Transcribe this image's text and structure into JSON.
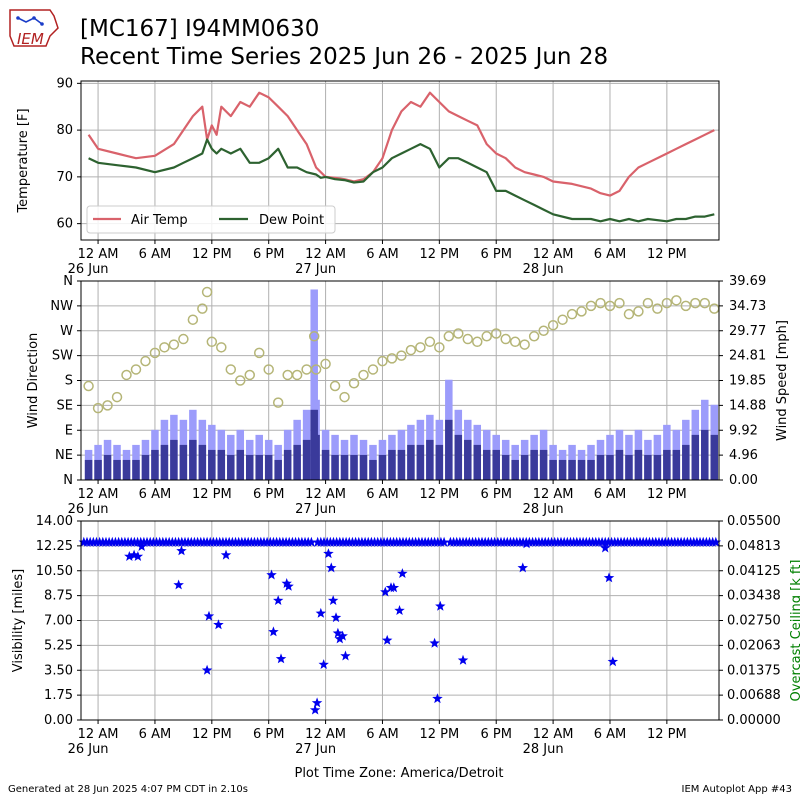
{
  "header": {
    "title_line1": "[MC167] I94MM0630",
    "title_line2": "Recent Time Series 2025 Jun 26 - 2025 Jun 28",
    "logo_text": "IEM"
  },
  "footer": {
    "generated": "Generated at 28 Jun 2025 4:07 PM CDT in 2.10s",
    "app": "IEM Autoplot App #43"
  },
  "colors": {
    "air_temp": "#d9626b",
    "dew_point": "#2d6230",
    "wind_speed_light": "#9c9cfb",
    "wind_speed_dark": "#3a3a9b",
    "wind_direction": "#b5b577",
    "visibility": "#0000ee",
    "ceiling_axis": "#008000",
    "grid": "#b0b0b0"
  },
  "chart_data": [
    {
      "type": "line",
      "panel": "temperature",
      "ylabel": "Temperature [F]",
      "ylim": [
        56.5,
        90.5
      ],
      "yticks": [
        60,
        70,
        80,
        90
      ],
      "grid": true,
      "legend_position": "lower-left",
      "x_hours_from_midnight_jun26": [
        -1,
        0,
        2,
        4,
        6,
        8,
        9,
        10,
        11,
        11.5,
        12,
        12.5,
        13,
        14,
        15,
        16,
        17,
        18,
        19,
        20,
        21,
        22,
        23,
        23.5,
        24,
        25,
        26,
        27,
        28,
        29,
        30,
        31,
        32,
        33,
        34,
        35,
        36,
        37,
        38,
        39,
        40,
        41,
        42,
        43,
        44,
        45,
        46,
        47,
        48,
        50,
        52,
        53,
        54,
        55,
        56,
        57,
        58,
        60,
        61,
        62,
        63,
        64,
        65
      ],
      "xtick_labels": [
        "12 AM\n26 Jun",
        "6 AM",
        "12 PM",
        "6 PM",
        "12 AM\n27 Jun",
        "6 AM",
        "12 PM",
        "6 PM",
        "12 AM\n28 Jun",
        "6 AM",
        "12 PM"
      ],
      "series": [
        {
          "name": "Air Temp",
          "values": [
            79,
            76,
            75,
            74,
            74.5,
            77,
            80,
            83,
            85,
            78,
            81,
            79,
            85,
            83,
            86,
            85,
            88,
            87,
            85,
            83,
            80,
            77,
            72,
            71,
            70,
            69.8,
            69.5,
            69,
            69.5,
            71,
            74,
            80,
            84,
            86,
            85,
            88,
            86,
            84,
            83,
            82,
            81,
            77,
            75,
            74,
            72,
            71,
            70.5,
            70,
            69,
            68.5,
            67.5,
            66.5,
            66,
            67,
            70,
            72,
            73,
            75,
            76,
            77,
            78,
            79,
            80
          ]
        },
        {
          "name": "Dew Point",
          "values": [
            74,
            73,
            72.5,
            72,
            71,
            72,
            73,
            74,
            75,
            78,
            76,
            75,
            76,
            75,
            76,
            73,
            73,
            74,
            76,
            72,
            72,
            71,
            70.5,
            69.8,
            70,
            69.5,
            69.3,
            68.8,
            69,
            71,
            72,
            74,
            75,
            76,
            77,
            76,
            72,
            74,
            74,
            73,
            72,
            71,
            67,
            67,
            66,
            65,
            64,
            63,
            62,
            61,
            61,
            60.5,
            61,
            60.5,
            61,
            60.5,
            61,
            60.5,
            61,
            61,
            61.5,
            61.5,
            62
          ]
        }
      ]
    },
    {
      "type": "bar",
      "panel": "wind",
      "ylabel": "Wind Direction",
      "y2label": "Wind Speed [mph]",
      "ylim_direction": [
        0,
        360
      ],
      "direction_tick_labels": [
        "N",
        "NE",
        "E",
        "SE",
        "S",
        "SW",
        "W",
        "NW",
        "N"
      ],
      "ylim_speed_mph": [
        0,
        39.69
      ],
      "speed_tick_labels": [
        "0.00",
        "4.96",
        "9.92",
        "14.88",
        "19.85",
        "24.81",
        "29.77",
        "34.73",
        "39.69"
      ],
      "grid": true,
      "series": [
        {
          "name": "gust",
          "x_hours": [
            -1,
            0,
            1,
            2,
            3,
            4,
            5,
            6,
            7,
            8,
            9,
            10,
            11,
            12,
            13,
            14,
            15,
            16,
            17,
            18,
            19,
            20,
            21,
            22,
            22.8,
            23,
            24,
            25,
            26,
            27,
            28,
            29,
            30,
            31,
            32,
            33,
            34,
            35,
            36,
            37,
            38,
            39,
            40,
            41,
            42,
            43,
            44,
            45,
            46,
            47,
            48,
            49,
            50,
            51,
            52,
            53,
            54,
            55,
            56,
            57,
            58,
            59,
            60,
            61,
            62,
            63,
            64,
            65
          ],
          "values": [
            6,
            7,
            8,
            7,
            6,
            7,
            8,
            10,
            12,
            13,
            12,
            14,
            12,
            11,
            10,
            9,
            10,
            8,
            9,
            8,
            7,
            10,
            12,
            14,
            38,
            16,
            10,
            9,
            8,
            9,
            8,
            7,
            8,
            9,
            10,
            11,
            12,
            13,
            12,
            20,
            14,
            12,
            11,
            10,
            9,
            8,
            7,
            8,
            9,
            10,
            7,
            6,
            7,
            6,
            7,
            8,
            9,
            10,
            9,
            10,
            8,
            9,
            11,
            10,
            12,
            14,
            16,
            15
          ]
        },
        {
          "name": "sustained",
          "x_hours": [
            -1,
            0,
            1,
            2,
            3,
            4,
            5,
            6,
            7,
            8,
            9,
            10,
            11,
            12,
            13,
            14,
            15,
            16,
            17,
            18,
            19,
            20,
            21,
            22,
            22.8,
            23,
            24,
            25,
            26,
            27,
            28,
            29,
            30,
            31,
            32,
            33,
            34,
            35,
            36,
            37,
            38,
            39,
            40,
            41,
            42,
            43,
            44,
            45,
            46,
            47,
            48,
            49,
            50,
            51,
            52,
            53,
            54,
            55,
            56,
            57,
            58,
            59,
            60,
            61,
            62,
            63,
            64,
            65
          ],
          "values": [
            4,
            4,
            5,
            4,
            4,
            4,
            5,
            6,
            7,
            8,
            7,
            8,
            7,
            6,
            6,
            5,
            6,
            5,
            5,
            5,
            4,
            6,
            7,
            8,
            14,
            9,
            6,
            5,
            5,
            5,
            5,
            4,
            5,
            6,
            6,
            7,
            7,
            8,
            7,
            12,
            9,
            8,
            7,
            6,
            6,
            5,
            4,
            5,
            6,
            6,
            4,
            4,
            4,
            4,
            4,
            5,
            5,
            6,
            5,
            6,
            5,
            5,
            6,
            6,
            7,
            9,
            10,
            9
          ]
        },
        {
          "name": "direction_deg",
          "x_hours": [
            -1,
            0,
            1,
            2,
            3,
            4,
            5,
            6,
            7,
            8,
            9,
            10,
            11,
            11.5,
            12,
            13,
            14,
            15,
            16,
            17,
            18,
            19,
            20,
            21,
            22,
            22.8,
            23,
            24,
            25,
            26,
            27,
            28,
            29,
            30,
            31,
            32,
            33,
            34,
            35,
            36,
            37,
            38,
            39,
            40,
            41,
            42,
            43,
            44,
            45,
            46,
            47,
            48,
            49,
            50,
            51,
            52,
            53,
            54,
            55,
            56,
            57,
            58,
            59,
            60,
            61,
            62,
            63,
            64,
            65
          ],
          "values": [
            170,
            130,
            135,
            150,
            190,
            200,
            215,
            230,
            240,
            245,
            255,
            290,
            310,
            340,
            250,
            240,
            200,
            180,
            190,
            230,
            200,
            140,
            190,
            190,
            200,
            260,
            200,
            210,
            170,
            150,
            175,
            190,
            200,
            215,
            220,
            225,
            235,
            240,
            250,
            240,
            260,
            265,
            255,
            250,
            260,
            265,
            255,
            250,
            245,
            260,
            270,
            280,
            290,
            300,
            305,
            315,
            320,
            315,
            320,
            300,
            305,
            320,
            310,
            320,
            325,
            315,
            320,
            320,
            310
          ]
        }
      ]
    },
    {
      "type": "scatter",
      "panel": "visibility",
      "ylabel": "Visibility [miles]",
      "y2label": "Overcast Ceiling [k ft]",
      "ylim": [
        0,
        14
      ],
      "yticks": [
        "0.00",
        "1.75",
        "3.50",
        "5.25",
        "7.00",
        "8.75",
        "10.50",
        "12.25",
        "14.00"
      ],
      "y2ticks": [
        "0.00000",
        "0.00688",
        "0.01375",
        "0.02063",
        "0.02750",
        "0.03438",
        "0.04125",
        "0.04813",
        "0.05500"
      ],
      "xlabel": "Plot Time Zone: America/Detroit",
      "grid": true,
      "baseline_visibility": 12.5,
      "series": [
        {
          "name": "visibility_drops",
          "x_hours": [
            3.3,
            3.8,
            4.2,
            4.6,
            8.5,
            8.8,
            11.5,
            11.7,
            12.7,
            13.5,
            18.3,
            18.5,
            19.0,
            19.3,
            19.9,
            20.1,
            22.9,
            23.1,
            23.5,
            23.8,
            24.3,
            24.6,
            24.8,
            25.1,
            25.3,
            25.5,
            25.8,
            26.1,
            30.3,
            30.5,
            30.9,
            31.2,
            31.8,
            32.1,
            35.5,
            35.8,
            36.1,
            38.5,
            44.8,
            45.2,
            53.5,
            53.9,
            54.3
          ],
          "values": [
            11.5,
            11.6,
            11.5,
            12.2,
            9.5,
            11.9,
            3.5,
            7.3,
            6.7,
            11.6,
            10.2,
            6.2,
            8.4,
            4.3,
            9.6,
            9.4,
            0.7,
            1.2,
            7.5,
            3.9,
            11.7,
            10.7,
            8.4,
            7.2,
            6.1,
            5.7,
            5.9,
            4.5,
            9.0,
            5.6,
            9.3,
            9.3,
            7.7,
            10.3,
            5.4,
            1.5,
            8.0,
            4.2,
            10.7,
            12.4,
            12.1,
            10.0,
            4.1
          ]
        }
      ]
    }
  ]
}
